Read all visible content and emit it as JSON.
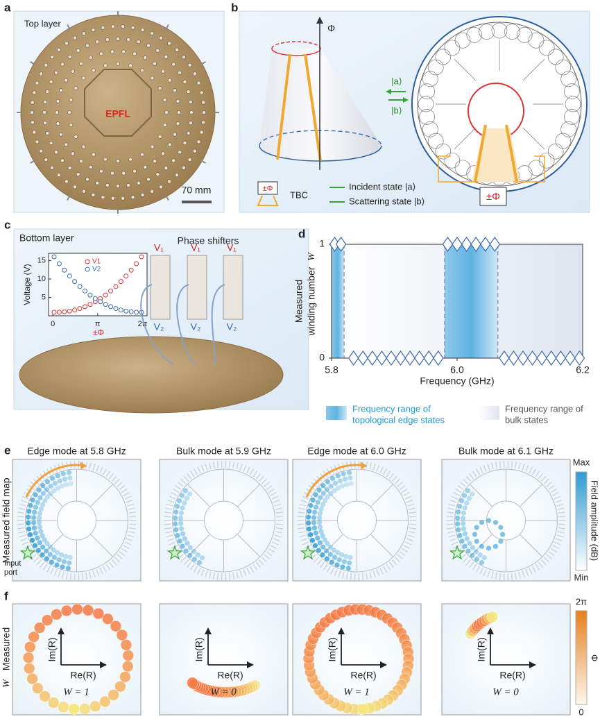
{
  "panel_a": {
    "label": "a",
    "title": "Top layer",
    "logo": "EPFL",
    "scale_bar": "70 mm"
  },
  "panel_b": {
    "label": "b",
    "axis": "Φ",
    "ket_a": "|a⟩",
    "ket_b": "|b⟩",
    "flux": "±Φ",
    "legend_flux": "±Φ",
    "legend_tbc": "TBC",
    "legend_incident": "Incident state |a⟩",
    "legend_scattering": "Scattering state |b⟩"
  },
  "panel_c": {
    "label": "c",
    "title": "Bottom layer",
    "phase_shifters": "Phase shifters",
    "shifter_top": [
      "V₁",
      "V₁",
      "V₁"
    ],
    "shifter_bottom": [
      "V₂",
      "V₂",
      "V₂"
    ],
    "inset": {
      "ylabel": "Voltage (V)",
      "xlabel": "±Φ",
      "legend": [
        "V1",
        "V2"
      ],
      "xlim": [
        -0.3,
        6.6
      ],
      "ylim": [
        0,
        17
      ],
      "xticks": [
        0,
        {
          "value": 3.1416,
          "label": "π"
        },
        {
          "value": 6.2832,
          "label": "2π"
        }
      ],
      "yticks": [
        5,
        10,
        15
      ]
    }
  },
  "panel_d": {
    "label": "d",
    "ylabel_lines": [
      "Measured",
      "winding number"
    ],
    "ylabel_symbol": "W",
    "xlabel": "Frequency (GHz)",
    "xlim": [
      5.8,
      6.2
    ],
    "ylim": [
      0,
      1
    ],
    "xticks": [
      5.8,
      {
        "value": 6,
        "label": "6.0"
      },
      6.2
    ],
    "yticks": [
      0,
      1
    ],
    "frequency": [
      5.805,
      5.815,
      5.835,
      5.85,
      5.865,
      5.88,
      5.895,
      5.91,
      5.925,
      5.94,
      5.955,
      5.97,
      5.985,
      6.0,
      6.015,
      6.03,
      6.045,
      6.06,
      6.075,
      6.09,
      6.105,
      6.12,
      6.135,
      6.15,
      6.165,
      6.18,
      6.195
    ],
    "winding": [
      1,
      1,
      0,
      0,
      0,
      0,
      0,
      0,
      0,
      0,
      0,
      0,
      1,
      1,
      1,
      1,
      1,
      1,
      0,
      0,
      0,
      0,
      0,
      0,
      0,
      0,
      0
    ],
    "edge_ranges": [
      [
        5.8,
        5.82
      ],
      [
        5.98,
        6.065
      ]
    ],
    "legend_edge": [
      "Frequency range of",
      "topological edge states"
    ],
    "legend_bulk": [
      "Frequency range of",
      "bulk states"
    ]
  },
  "panel_e": {
    "label": "e",
    "titles": [
      "Edge mode at 5.8 GHz",
      "Bulk mode at 5.9 GHz",
      "Edge mode at 6.0 GHz",
      "Bulk mode at 6.1 GHz"
    ],
    "ylabel": "Measured field map",
    "input_port": [
      "Input",
      "port"
    ],
    "colorbar": {
      "max": "Max",
      "min": "Min",
      "label": "Field amplitude (dB)"
    }
  },
  "panel_f": {
    "label": "f",
    "ylabel": "Measured",
    "ylabel_symbol": "W",
    "im": "Im(R)",
    "re": "Re(R)",
    "winding_labels": [
      "W = 1",
      "W = 0",
      "W = 1",
      "W = 0"
    ],
    "colorbar": {
      "max": "2π",
      "min": 0,
      "label": "Φ"
    }
  }
}
